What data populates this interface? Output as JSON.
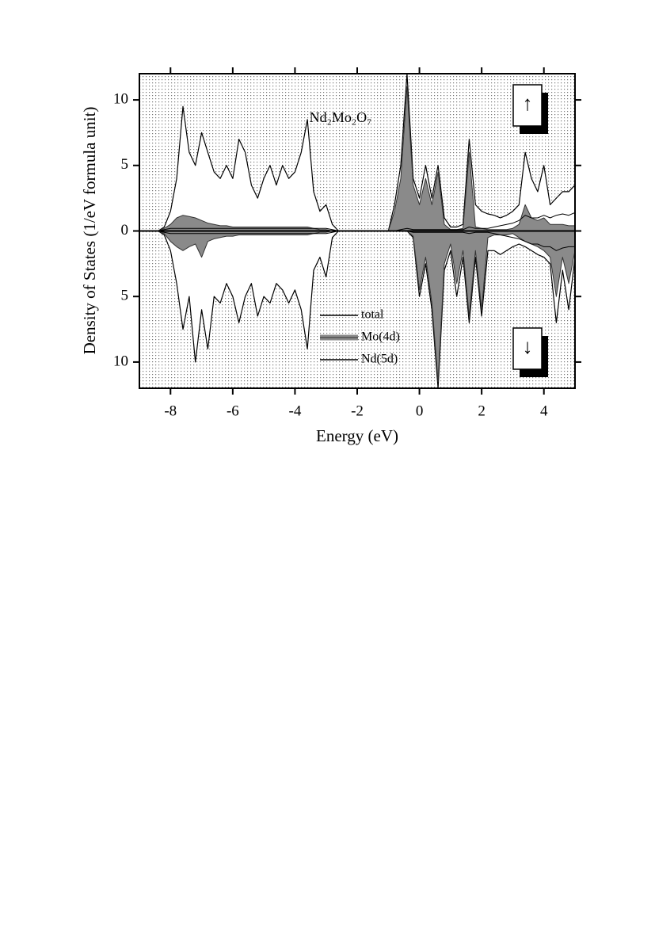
{
  "chart_data": {
    "type": "area",
    "annotation": "Nd₂Mo₂O₇",
    "spin_labels": [
      "↑",
      "↓"
    ],
    "xlabel": "Energy (eV)",
    "ylabel": "Density of States (1/eV formula unit)",
    "xlim": [
      -9,
      5
    ],
    "ylim": [
      -12,
      12
    ],
    "xticks": [
      -8,
      -6,
      -4,
      -2,
      0,
      2,
      4
    ],
    "yticks": [
      {
        "value": -10,
        "label": "10"
      },
      {
        "value": -5,
        "label": "5"
      },
      0,
      5,
      10
    ],
    "legend": "lower center",
    "x": [
      -8.4,
      -8.2,
      -8.0,
      -7.8,
      -7.6,
      -7.4,
      -7.2,
      -7.0,
      -6.8,
      -6.6,
      -6.4,
      -6.2,
      -6.0,
      -5.8,
      -5.6,
      -5.4,
      -5.2,
      -5.0,
      -4.8,
      -4.6,
      -4.4,
      -4.2,
      -4.0,
      -3.8,
      -3.6,
      -3.4,
      -3.2,
      -3.0,
      -2.8,
      -2.6,
      -2.4,
      -2.2,
      -2.0,
      -1.8,
      -1.6,
      -1.4,
      -1.2,
      -1.0,
      -0.8,
      -0.6,
      -0.4,
      -0.2,
      0,
      0.2,
      0.4,
      0.6,
      0.8,
      1.0,
      1.2,
      1.4,
      1.6,
      1.8,
      2.0,
      2.2,
      2.4,
      2.6,
      2.8,
      3.0,
      3.2,
      3.4,
      3.6,
      3.8,
      4.0,
      4.2,
      4.4,
      4.6,
      4.8,
      5.0
    ],
    "series": [
      {
        "name": "total",
        "color": "#ffffff",
        "values": [
          0,
          0.3,
          1.5,
          4,
          9.5,
          6,
          5,
          7.5,
          6,
          4.5,
          4,
          5,
          4,
          7,
          6,
          3.5,
          2.5,
          4,
          5,
          3.5,
          5,
          4,
          4.5,
          6,
          8.5,
          3,
          1.5,
          2,
          0.5,
          0,
          0,
          0,
          0,
          0,
          0,
          0,
          0,
          0,
          2,
          5,
          12,
          4,
          2.5,
          5,
          2.5,
          5,
          1,
          0.3,
          0.3,
          0.5,
          7,
          2,
          1.5,
          1.3,
          1.2,
          1,
          1.2,
          1.5,
          2,
          6,
          4,
          3,
          5,
          2,
          2.5,
          3,
          3,
          3.5
        ],
        "values_down": [
          0,
          -0.3,
          -1.5,
          -4,
          -7.5,
          -5,
          -10,
          -6,
          -9,
          -5,
          -5.5,
          -4,
          -5,
          -7,
          -5,
          -4,
          -6.5,
          -5,
          -5.5,
          -4,
          -4.5,
          -5.5,
          -4.5,
          -6,
          -9,
          -3,
          -2,
          -3.5,
          -0.5,
          0,
          0,
          0,
          0,
          0,
          0,
          0,
          0,
          0,
          0,
          0,
          0,
          -0.5,
          -5,
          -2.5,
          -6,
          -12,
          -3,
          -1.5,
          -5,
          -2,
          -7,
          -2,
          -6.5,
          -1.5,
          -1.5,
          -1.8,
          -1.5,
          -1.2,
          -1,
          -1.2,
          -1.5,
          -1.8,
          -2,
          -2.5,
          -7,
          -3,
          -6,
          -2
        ]
      },
      {
        "name": "Mo(4d)",
        "color": "#8a8a8a",
        "values": [
          0,
          0.2,
          0.5,
          1,
          1.2,
          1.1,
          1,
          0.8,
          0.6,
          0.5,
          0.4,
          0.4,
          0.3,
          0.3,
          0.3,
          0.3,
          0.3,
          0.3,
          0.3,
          0.3,
          0.3,
          0.3,
          0.3,
          0.3,
          0.3,
          0.2,
          0.1,
          0.1,
          0,
          0,
          0,
          0,
          0,
          0,
          0,
          0,
          0,
          0,
          1.5,
          4,
          11,
          3.5,
          2,
          4,
          2,
          4.5,
          0.5,
          0.1,
          0.1,
          0.2,
          6,
          0.3,
          0.2,
          0.1,
          0.1,
          0.1,
          0.1,
          0.2,
          0.5,
          2,
          1,
          0.8,
          1,
          0.5,
          0.5,
          0.5,
          0.4,
          0.4
        ],
        "values_down": [
          0,
          -0.2,
          -0.8,
          -1.2,
          -1.5,
          -1.2,
          -1,
          -2,
          -0.8,
          -0.6,
          -0.5,
          -0.4,
          -0.4,
          -0.3,
          -0.3,
          -0.3,
          -0.3,
          -0.3,
          -0.3,
          -0.3,
          -0.3,
          -0.3,
          -0.3,
          -0.3,
          -0.3,
          -0.2,
          -0.1,
          -0.1,
          0,
          0,
          0,
          0,
          0,
          0,
          0,
          0,
          0,
          0,
          0,
          0,
          0,
          -0.4,
          -4.5,
          -2,
          -5.5,
          -11.5,
          -2.5,
          -1,
          -4,
          -1.5,
          -6.5,
          -1.5,
          -6,
          -0.5,
          -0.3,
          -0.3,
          -0.3,
          -0.2,
          -0.5,
          -0.8,
          -1,
          -1.2,
          -1.5,
          -2,
          -5,
          -2,
          -4,
          -1.5
        ]
      },
      {
        "name": "Nd(5d)",
        "color": "#000000",
        "values": [
          0,
          0.1,
          0.2,
          0.2,
          0.2,
          0.2,
          0.2,
          0.2,
          0.2,
          0.2,
          0.2,
          0.2,
          0.2,
          0.2,
          0.2,
          0.2,
          0.2,
          0.2,
          0.2,
          0.2,
          0.2,
          0.2,
          0.2,
          0.2,
          0.2,
          0.2,
          0.2,
          0.2,
          0.1,
          0,
          0,
          0,
          0,
          0,
          0,
          0,
          0,
          0,
          0,
          0.1,
          0.2,
          0.1,
          0.1,
          0.1,
          0.1,
          0.1,
          0.1,
          0.1,
          0.1,
          0.1,
          0.3,
          0.2,
          0.2,
          0.2,
          0.3,
          0.4,
          0.5,
          0.6,
          0.8,
          1.2,
          1,
          1,
          1.2,
          1,
          1.2,
          1.3,
          1.2,
          1.4
        ],
        "values_down": [
          0,
          -0.1,
          -0.2,
          -0.2,
          -0.2,
          -0.2,
          -0.2,
          -0.2,
          -0.2,
          -0.2,
          -0.2,
          -0.2,
          -0.2,
          -0.2,
          -0.2,
          -0.2,
          -0.2,
          -0.2,
          -0.2,
          -0.2,
          -0.2,
          -0.2,
          -0.2,
          -0.2,
          -0.2,
          -0.2,
          -0.2,
          -0.2,
          -0.1,
          0,
          0,
          0,
          0,
          0,
          0,
          0,
          0,
          0,
          0,
          0,
          0,
          -0.1,
          -0.1,
          -0.1,
          -0.1,
          -0.1,
          -0.1,
          -0.1,
          -0.1,
          -0.1,
          -0.2,
          -0.1,
          -0.1,
          -0.1,
          -0.2,
          -0.3,
          -0.4,
          -0.5,
          -0.6,
          -0.8,
          -1,
          -1,
          -1.2,
          -1.2,
          -1.5,
          -1.3,
          -1.2,
          -1.2
        ]
      }
    ]
  }
}
